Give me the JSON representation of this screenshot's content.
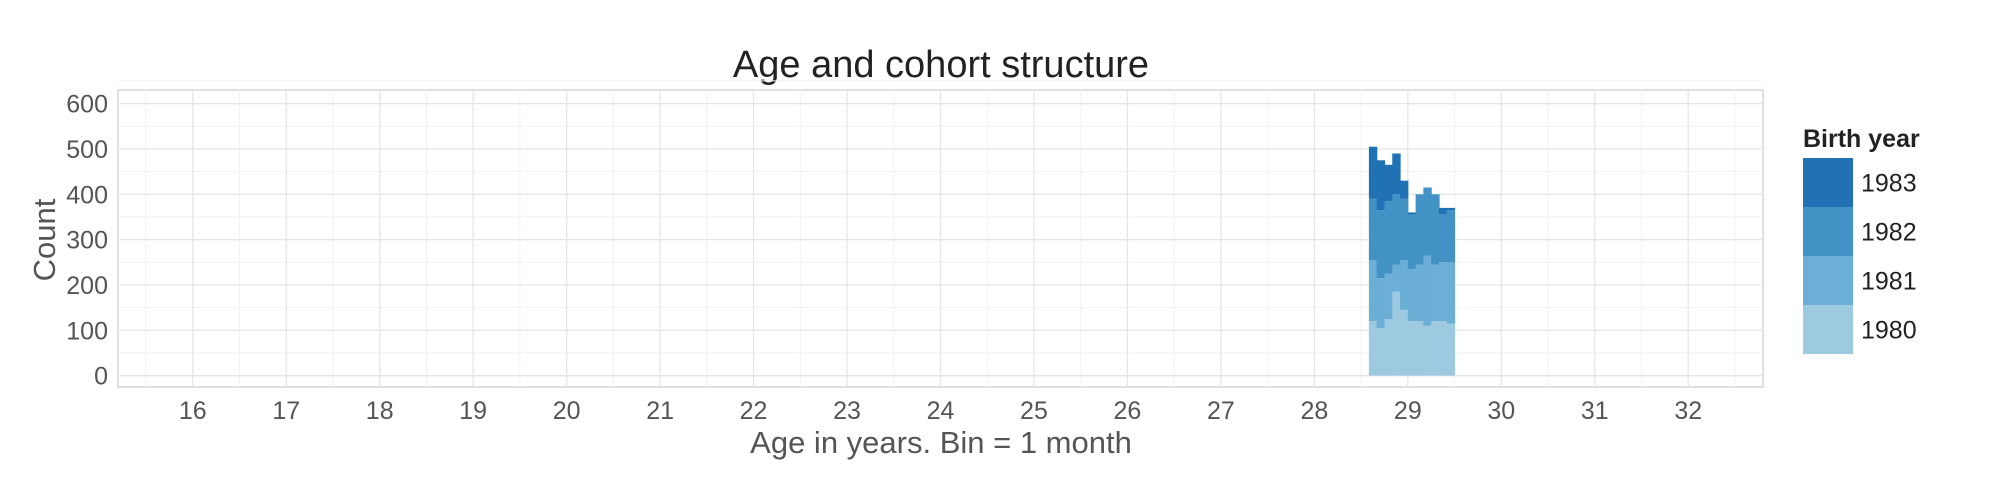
{
  "chart_data": {
    "type": "bar",
    "stacked": true,
    "title": "Age and cohort structure",
    "xlabel": "Age in years. Bin = 1 month",
    "ylabel": "Count",
    "xlim": [
      15.2,
      32.8
    ],
    "ylim": [
      -25,
      630
    ],
    "x_ticks": [
      "16",
      "17",
      "18",
      "19",
      "20",
      "21",
      "22",
      "23",
      "24",
      "25",
      "26",
      "27",
      "28",
      "29",
      "30",
      "31",
      "32"
    ],
    "y_ticks": [
      "0",
      "100",
      "200",
      "300",
      "400",
      "500",
      "600"
    ],
    "grid": true,
    "legend": {
      "title": "Birth year",
      "position": "right"
    },
    "bin_width": 0.0833,
    "x": [
      28.625,
      28.708,
      28.792,
      28.875,
      28.958,
      29.042,
      29.125,
      29.208,
      29.292,
      29.375,
      29.458
    ],
    "series": [
      {
        "name": "1980",
        "color": "#9ecae1",
        "values": [
          120,
          105,
          125,
          185,
          145,
          120,
          120,
          110,
          120,
          120,
          115
        ]
      },
      {
        "name": "1981",
        "color": "#6baed6",
        "values": [
          135,
          110,
          100,
          60,
          110,
          115,
          125,
          155,
          125,
          130,
          135
        ]
      },
      {
        "name": "1982",
        "color": "#4292c6",
        "values": [
          135,
          150,
          160,
          155,
          135,
          120,
          155,
          150,
          155,
          105,
          115
        ]
      },
      {
        "name": "1983",
        "color": "#2171b5",
        "values": [
          115,
          110,
          80,
          90,
          40,
          5,
          0,
          0,
          0,
          15,
          5
        ]
      }
    ]
  }
}
